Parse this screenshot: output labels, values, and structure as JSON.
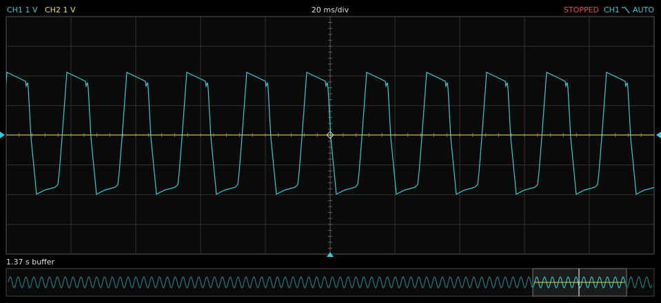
{
  "header": {
    "ch1": "CH1 1 V",
    "ch2": "CH2 1 V",
    "timebase": "20 ms/div",
    "status": "STOPPED",
    "trigger_source": "CH1",
    "trigger_mode": "AUTO"
  },
  "buffer": {
    "label": "1.37 s buffer"
  }
}
